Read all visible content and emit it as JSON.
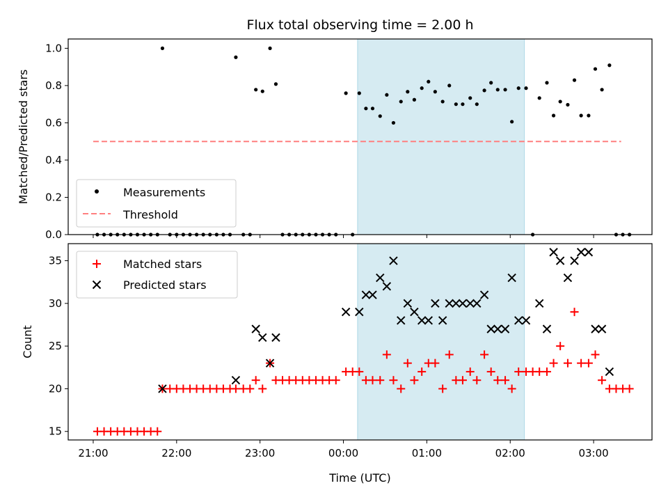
{
  "chart_data": [
    {
      "type": "scatter",
      "title": "Flux total observing time = 2.00 h",
      "ylabel": "Matched/Predicted stars",
      "xlabel": "",
      "xlim": [
        -3.3,
        3.7
      ],
      "ylim": [
        0,
        1.05
      ],
      "yticks": [
        0.0,
        0.2,
        0.4,
        0.6,
        0.8,
        1.0
      ],
      "ytick_labels": [
        "0.0",
        "0.2",
        "0.4",
        "0.6",
        "0.8",
        "1.0"
      ],
      "highlight_span": {
        "x_start": 0.17,
        "x_end": 2.17,
        "color": "#add8e6"
      },
      "legend_position": "lower-left",
      "threshold": {
        "label": "Threshold",
        "value": 0.5,
        "x_start": -3.0,
        "x_end": 3.33,
        "color": "#ff7f7f"
      },
      "series": [
        {
          "name": "Measurements",
          "marker": "dot",
          "color": "#000000",
          "points": [
            [
              -2.95,
              0
            ],
            [
              -2.87,
              0
            ],
            [
              -2.79,
              0
            ],
            [
              -2.71,
              0
            ],
            [
              -2.63,
              0
            ],
            [
              -2.55,
              0
            ],
            [
              -2.47,
              0
            ],
            [
              -2.39,
              0
            ],
            [
              -2.31,
              0
            ],
            [
              -2.23,
              0
            ],
            [
              -2.17,
              1.0
            ],
            [
              -2.08,
              0
            ],
            [
              -2.0,
              0
            ],
            [
              -1.92,
              0
            ],
            [
              -1.84,
              0
            ],
            [
              -1.76,
              0
            ],
            [
              -1.68,
              0
            ],
            [
              -1.6,
              0
            ],
            [
              -1.52,
              0
            ],
            [
              -1.44,
              0
            ],
            [
              -1.36,
              0
            ],
            [
              -1.29,
              0.952
            ],
            [
              -1.2,
              0
            ],
            [
              -1.12,
              0
            ],
            [
              -1.05,
              0.778
            ],
            [
              -0.97,
              0.769
            ],
            [
              -0.88,
              1.0
            ],
            [
              -0.81,
              0.808
            ],
            [
              -0.73,
              0
            ],
            [
              -0.65,
              0
            ],
            [
              -0.57,
              0
            ],
            [
              -0.49,
              0
            ],
            [
              -0.41,
              0
            ],
            [
              -0.33,
              0
            ],
            [
              -0.25,
              0
            ],
            [
              -0.17,
              0
            ],
            [
              -0.09,
              0
            ],
            [
              0.03,
              0.759
            ],
            [
              0.11,
              0
            ],
            [
              0.19,
              0.759
            ],
            [
              0.27,
              0.677
            ],
            [
              0.35,
              0.677
            ],
            [
              0.44,
              0.636
            ],
            [
              0.52,
              0.75
            ],
            [
              0.6,
              0.6
            ],
            [
              0.69,
              0.714
            ],
            [
              0.77,
              0.767
            ],
            [
              0.85,
              0.724
            ],
            [
              0.94,
              0.786
            ],
            [
              1.02,
              0.821
            ],
            [
              1.1,
              0.767
            ],
            [
              1.19,
              0.714
            ],
            [
              1.27,
              0.8
            ],
            [
              1.35,
              0.7
            ],
            [
              1.43,
              0.7
            ],
            [
              1.52,
              0.733
            ],
            [
              1.6,
              0.7
            ],
            [
              1.69,
              0.774
            ],
            [
              1.77,
              0.815
            ],
            [
              1.85,
              0.778
            ],
            [
              1.94,
              0.778
            ],
            [
              2.02,
              0.606
            ],
            [
              2.1,
              0.786
            ],
            [
              2.19,
              0.786
            ],
            [
              2.27,
              0
            ],
            [
              2.35,
              0.733
            ],
            [
              2.44,
              0.815
            ],
            [
              2.52,
              0.639
            ],
            [
              2.6,
              0.714
            ],
            [
              2.69,
              0.697
            ],
            [
              2.77,
              0.829
            ],
            [
              2.85,
              0.639
            ],
            [
              2.94,
              0.639
            ],
            [
              3.02,
              0.889
            ],
            [
              3.1,
              0.778
            ],
            [
              3.19,
              0.909
            ],
            [
              3.27,
              0
            ],
            [
              3.35,
              0
            ],
            [
              3.43,
              0
            ]
          ]
        }
      ]
    },
    {
      "type": "scatter",
      "title": "",
      "xlabel": "Time (UTC)",
      "ylabel": "Count",
      "xlim": [
        -3.3,
        3.7
      ],
      "ylim": [
        14,
        37
      ],
      "yticks": [
        15,
        20,
        25,
        30,
        35
      ],
      "ytick_labels": [
        "15",
        "20",
        "25",
        "30",
        "35"
      ],
      "xticks": [
        -3,
        -2,
        -1,
        0,
        1,
        2,
        3
      ],
      "xtick_labels": [
        "21:00",
        "22:00",
        "23:00",
        "00:00",
        "01:00",
        "02:00",
        "03:00"
      ],
      "highlight_span": {
        "x_start": 0.17,
        "x_end": 2.17,
        "color": "#add8e6"
      },
      "legend_position": "upper-left",
      "series": [
        {
          "name": "Matched stars",
          "marker": "plus",
          "color": "#ff0000",
          "points": [
            [
              -2.95,
              15
            ],
            [
              -2.87,
              15
            ],
            [
              -2.79,
              15
            ],
            [
              -2.71,
              15
            ],
            [
              -2.63,
              15
            ],
            [
              -2.55,
              15
            ],
            [
              -2.47,
              15
            ],
            [
              -2.39,
              15
            ],
            [
              -2.31,
              15
            ],
            [
              -2.23,
              15
            ],
            [
              -2.17,
              20
            ],
            [
              -2.08,
              20
            ],
            [
              -2.0,
              20
            ],
            [
              -1.92,
              20
            ],
            [
              -1.84,
              20
            ],
            [
              -1.76,
              20
            ],
            [
              -1.68,
              20
            ],
            [
              -1.6,
              20
            ],
            [
              -1.52,
              20
            ],
            [
              -1.44,
              20
            ],
            [
              -1.36,
              20
            ],
            [
              -1.29,
              20
            ],
            [
              -1.2,
              20
            ],
            [
              -1.12,
              20
            ],
            [
              -1.05,
              21
            ],
            [
              -0.97,
              20
            ],
            [
              -0.88,
              23
            ],
            [
              -0.81,
              21
            ],
            [
              -0.73,
              21
            ],
            [
              -0.65,
              21
            ],
            [
              -0.57,
              21
            ],
            [
              -0.49,
              21
            ],
            [
              -0.41,
              21
            ],
            [
              -0.33,
              21
            ],
            [
              -0.25,
              21
            ],
            [
              -0.17,
              21
            ],
            [
              -0.09,
              21
            ],
            [
              0.03,
              22
            ],
            [
              0.11,
              22
            ],
            [
              0.19,
              22
            ],
            [
              0.27,
              21
            ],
            [
              0.35,
              21
            ],
            [
              0.44,
              21
            ],
            [
              0.52,
              24
            ],
            [
              0.6,
              21
            ],
            [
              0.69,
              20
            ],
            [
              0.77,
              23
            ],
            [
              0.85,
              21
            ],
            [
              0.94,
              22
            ],
            [
              1.02,
              23
            ],
            [
              1.1,
              23
            ],
            [
              1.19,
              20
            ],
            [
              1.27,
              24
            ],
            [
              1.35,
              21
            ],
            [
              1.43,
              21
            ],
            [
              1.52,
              22
            ],
            [
              1.6,
              21
            ],
            [
              1.69,
              24
            ],
            [
              1.77,
              22
            ],
            [
              1.85,
              21
            ],
            [
              1.94,
              21
            ],
            [
              2.02,
              20
            ],
            [
              2.1,
              22
            ],
            [
              2.19,
              22
            ],
            [
              2.27,
              22
            ],
            [
              2.35,
              22
            ],
            [
              2.44,
              22
            ],
            [
              2.52,
              23
            ],
            [
              2.6,
              25
            ],
            [
              2.69,
              23
            ],
            [
              2.77,
              29
            ],
            [
              2.85,
              23
            ],
            [
              2.94,
              23
            ],
            [
              3.02,
              24
            ],
            [
              3.1,
              21
            ],
            [
              3.19,
              20
            ],
            [
              3.27,
              20
            ],
            [
              3.35,
              20
            ],
            [
              3.43,
              20
            ]
          ]
        },
        {
          "name": "Predicted stars",
          "marker": "x",
          "color": "#000000",
          "points": [
            [
              -2.17,
              20
            ],
            [
              -1.29,
              21
            ],
            [
              -1.05,
              27
            ],
            [
              -0.97,
              26
            ],
            [
              -0.88,
              23
            ],
            [
              -0.81,
              26
            ],
            [
              0.03,
              29
            ],
            [
              0.19,
              29
            ],
            [
              0.27,
              31
            ],
            [
              0.35,
              31
            ],
            [
              0.44,
              33
            ],
            [
              0.52,
              32
            ],
            [
              0.6,
              35
            ],
            [
              0.69,
              28
            ],
            [
              0.77,
              30
            ],
            [
              0.85,
              29
            ],
            [
              0.94,
              28
            ],
            [
              1.02,
              28
            ],
            [
              1.1,
              30
            ],
            [
              1.19,
              28
            ],
            [
              1.27,
              30
            ],
            [
              1.35,
              30
            ],
            [
              1.43,
              30
            ],
            [
              1.52,
              30
            ],
            [
              1.6,
              30
            ],
            [
              1.69,
              31
            ],
            [
              1.77,
              27
            ],
            [
              1.85,
              27
            ],
            [
              1.94,
              27
            ],
            [
              2.02,
              33
            ],
            [
              2.1,
              28
            ],
            [
              2.19,
              28
            ],
            [
              2.35,
              30
            ],
            [
              2.44,
              27
            ],
            [
              2.52,
              36
            ],
            [
              2.6,
              35
            ],
            [
              2.69,
              33
            ],
            [
              2.77,
              35
            ],
            [
              2.85,
              36
            ],
            [
              2.94,
              36
            ],
            [
              3.02,
              27
            ],
            [
              3.1,
              27
            ],
            [
              3.19,
              22
            ]
          ]
        }
      ]
    }
  ]
}
